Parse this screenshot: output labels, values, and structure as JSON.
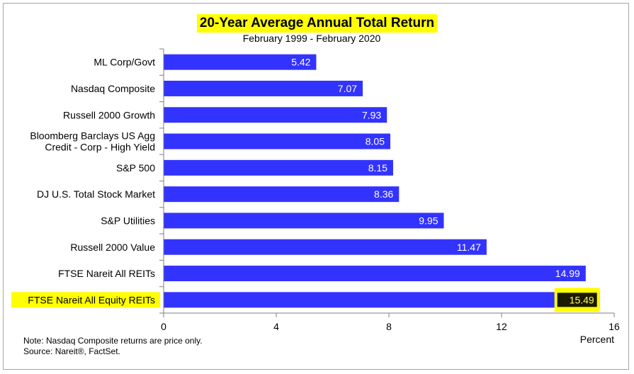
{
  "chart_data": {
    "type": "bar",
    "orientation": "horizontal",
    "title": "20-Year Average Annual Total Return",
    "subtitle": "February 1999 - February 2020",
    "xlabel": "Percent",
    "ylabel": "",
    "xlim": [
      0,
      16
    ],
    "xticks": [
      0,
      4,
      8,
      12,
      16
    ],
    "categories": [
      [
        "ML Corp/Govt"
      ],
      [
        "Nasdaq Composite"
      ],
      [
        "Russell 2000 Growth"
      ],
      [
        "Bloomberg Barclays US Agg",
        "Credit - Corp - High Yield"
      ],
      [
        "S&P 500"
      ],
      [
        "DJ U.S. Total Stock Market"
      ],
      [
        "S&P Utilities"
      ],
      [
        "Russell 2000 Value"
      ],
      [
        "FTSE Nareit All REITs"
      ],
      [
        "FTSE Nareit All Equity REITs"
      ]
    ],
    "values": [
      5.42,
      7.07,
      7.93,
      8.05,
      8.15,
      8.36,
      9.95,
      11.47,
      14.99,
      15.49
    ],
    "value_labels": [
      "5.42",
      "7.07",
      "7.93",
      "8.05",
      "8.15",
      "8.36",
      "9.95",
      "11.47",
      "14.99",
      "15.49"
    ],
    "highlighted_index": 9,
    "grid": false,
    "legend": "none",
    "colors": {
      "bar": "#3333ff",
      "highlight": "#ffff00",
      "highlight_value_bg": "#1a1a00",
      "axis": "#7f7f7f"
    }
  },
  "notes": {
    "line1": "Note: Nasdaq Composite returns are price only.",
    "line2": "Source: Nareit®, FactSet."
  }
}
